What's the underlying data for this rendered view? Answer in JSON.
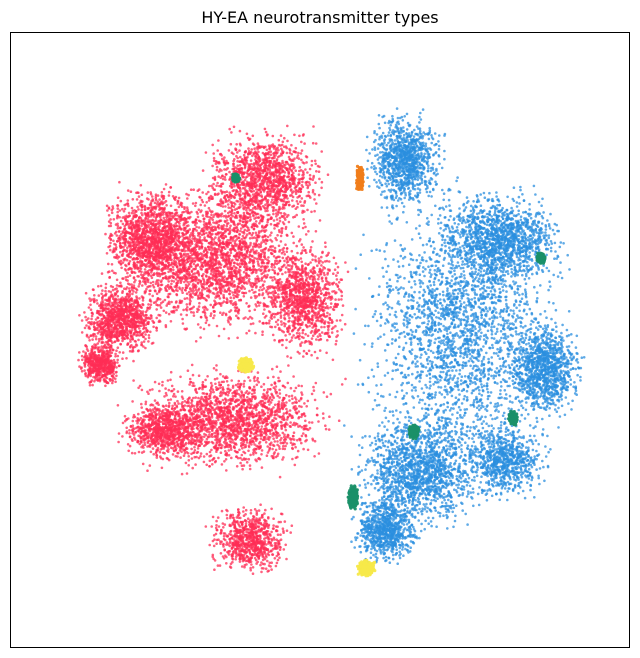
{
  "chart_data": {
    "type": "scatter",
    "title": "HY-EA neurotransmitter types",
    "xlabel": "",
    "ylabel": "",
    "axes_visible": false,
    "grid": false,
    "legend": "none",
    "series": [
      {
        "color": "#ff2d55",
        "region": "left half of the embedding (two large lobes)"
      },
      {
        "color": "#2b8fdf",
        "region": "right half of the embedding"
      },
      {
        "color": "#f7e94a",
        "region": "small clusters near the center-left and bottom-center"
      },
      {
        "color": "#1a9068",
        "region": "thin strands inside the right half"
      },
      {
        "color": "#f07d1a",
        "region": "small strand near the top center"
      }
    ]
  }
}
